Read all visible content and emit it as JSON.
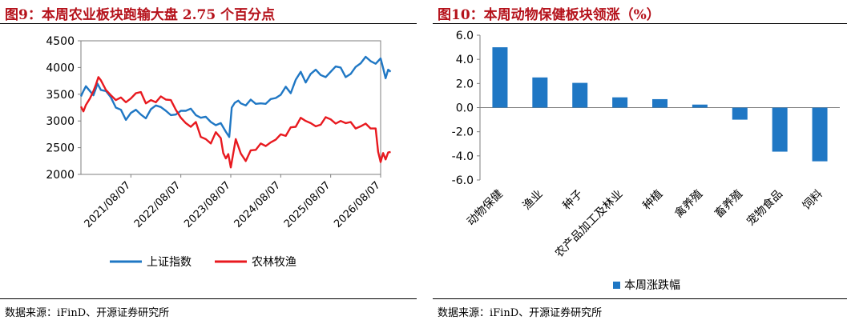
{
  "left": {
    "title": "图9：本周农业板块跑输大盘 2.75 个百分点",
    "source": "数据来源：iFinD、开源证券研究所",
    "chart_data": {
      "type": "line",
      "title": "图9：本周农业板块跑输大盘 2.75 个百分点",
      "xlabel": "",
      "ylabel": "",
      "ylim": [
        2000,
        4500
      ],
      "yticks": [
        "4500",
        "4000",
        "3500",
        "3000",
        "2500",
        "2000"
      ],
      "x_ticks": [
        "2021/08/07",
        "2022/08/07",
        "2023/08/07",
        "2024/08/07",
        "2025/08/07",
        "2026/08/07"
      ],
      "legend_position": "bottom",
      "grid": false,
      "series": [
        {
          "name": "上证指数",
          "color": "#1f77c4",
          "x": [
            0,
            0.05,
            0.1,
            0.18,
            0.25,
            0.3,
            0.33,
            0.4,
            0.5,
            0.6,
            0.7,
            0.8,
            0.9,
            1.0,
            1.1,
            1.2,
            1.3,
            1.4,
            1.5,
            1.6,
            1.7,
            1.8,
            1.9,
            2.0,
            2.1,
            2.2,
            2.3,
            2.4,
            2.5,
            2.6,
            2.7,
            2.8,
            2.9,
            2.97,
            3.02,
            3.08,
            3.15,
            3.2,
            3.3,
            3.4,
            3.5,
            3.6,
            3.7,
            3.8,
            3.9,
            4.0,
            4.1,
            4.2,
            4.3,
            4.4,
            4.5,
            4.6,
            4.7,
            4.8,
            4.9,
            5.0,
            5.1,
            5.2,
            5.3,
            5.4,
            5.5,
            5.6,
            5.7,
            5.8,
            5.9,
            6.0,
            6.05,
            6.1,
            6.15,
            6.2
          ],
          "values": [
            3460,
            3560,
            3650,
            3560,
            3480,
            3610,
            3700,
            3580,
            3560,
            3440,
            3250,
            3210,
            3020,
            3150,
            3210,
            3120,
            3050,
            3220,
            3290,
            3260,
            3190,
            3110,
            3120,
            3190,
            3190,
            3230,
            3110,
            3060,
            3080,
            2980,
            2920,
            2960,
            2800,
            2700,
            3250,
            3340,
            3380,
            3330,
            3290,
            3400,
            3320,
            3330,
            3320,
            3410,
            3430,
            3490,
            3640,
            3520,
            3770,
            3920,
            3720,
            3880,
            3960,
            3860,
            3820,
            3920,
            4020,
            4000,
            3820,
            3880,
            4010,
            4080,
            4200,
            4120,
            4070,
            4170,
            3990,
            3800,
            3960,
            3920
          ]
        },
        {
          "name": "农林牧渔",
          "color": "#e8191f",
          "x": [
            0,
            0.05,
            0.1,
            0.18,
            0.25,
            0.3,
            0.35,
            0.4,
            0.5,
            0.6,
            0.7,
            0.8,
            0.9,
            1.0,
            1.1,
            1.2,
            1.3,
            1.4,
            1.5,
            1.6,
            1.7,
            1.8,
            1.9,
            2.0,
            2.1,
            2.2,
            2.3,
            2.4,
            2.5,
            2.6,
            2.7,
            2.8,
            2.85,
            2.9,
            2.95,
            3.0,
            3.1,
            3.2,
            3.3,
            3.4,
            3.5,
            3.6,
            3.7,
            3.8,
            3.9,
            4.0,
            4.1,
            4.2,
            4.3,
            4.4,
            4.5,
            4.6,
            4.7,
            4.8,
            4.9,
            5.0,
            5.1,
            5.2,
            5.3,
            5.4,
            5.5,
            5.6,
            5.7,
            5.8,
            5.9,
            5.95,
            6.0,
            6.05,
            6.1,
            6.15,
            6.2
          ],
          "values": [
            3270,
            3180,
            3300,
            3420,
            3560,
            3680,
            3820,
            3760,
            3580,
            3480,
            3390,
            3440,
            3350,
            3420,
            3520,
            3540,
            3330,
            3390,
            3350,
            3460,
            3400,
            3390,
            3210,
            3060,
            2960,
            2890,
            2980,
            2700,
            2660,
            2580,
            2790,
            2680,
            2400,
            2300,
            2380,
            2130,
            2660,
            2390,
            2250,
            2450,
            2460,
            2580,
            2530,
            2600,
            2650,
            2750,
            2720,
            2880,
            2890,
            3060,
            3000,
            2960,
            2900,
            2930,
            3070,
            3030,
            2950,
            3000,
            2960,
            2980,
            2860,
            2900,
            2950,
            2860,
            2860,
            2420,
            2230,
            2400,
            2280,
            2410,
            2420
          ]
        }
      ]
    }
  },
  "right": {
    "title": "图10：本周动物保健板块领涨（%）",
    "source": "数据来源：iFinD、开源证券研究所",
    "chart_data": {
      "type": "bar",
      "title": "图10：本周动物保健板块领涨（%）",
      "xlabel": "",
      "ylabel": "",
      "ylim": [
        -6,
        6
      ],
      "yticks": [
        "6.0",
        "4.0",
        "2.0",
        "0.0",
        "-2.0",
        "-4.0",
        "-6.0"
      ],
      "categories": [
        "动物保健",
        "渔业",
        "种子",
        "农产品加工及林业",
        "种植",
        "禽养殖",
        "畜养殖",
        "宠物食品",
        "饲料"
      ],
      "legend_position": "bottom",
      "grid": false,
      "series": [
        {
          "name": "本周涨跌幅",
          "color": "#1f77c4",
          "values": [
            5.0,
            2.5,
            2.05,
            0.85,
            0.7,
            0.25,
            -1.0,
            -3.65,
            -4.45
          ]
        }
      ]
    }
  }
}
